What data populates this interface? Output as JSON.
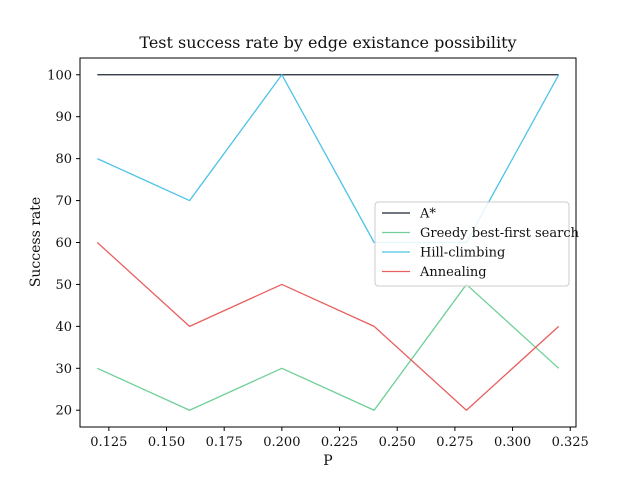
{
  "chart_data": {
    "type": "line",
    "title": "Test success rate by edge existance possibility",
    "xlabel": "P",
    "ylabel": "Success rate",
    "x": [
      0.12,
      0.16,
      0.2,
      0.24,
      0.28,
      0.32
    ],
    "xlim": [
      0.1125,
      0.3275
    ],
    "ylim": [
      16,
      104
    ],
    "xticks": [
      0.125,
      0.15,
      0.175,
      0.2,
      0.225,
      0.25,
      0.275,
      0.3,
      0.325
    ],
    "xtick_labels": [
      "0.125",
      "0.150",
      "0.175",
      "0.200",
      "0.225",
      "0.250",
      "0.275",
      "0.300",
      "0.325"
    ],
    "yticks": [
      20,
      30,
      40,
      50,
      60,
      70,
      80,
      90,
      100
    ],
    "ytick_labels": [
      "20",
      "30",
      "40",
      "50",
      "60",
      "70",
      "80",
      "90",
      "100"
    ],
    "grid": false,
    "legend_position": "center-right",
    "series": [
      {
        "name": "A*",
        "color": "#1b2631",
        "values": [
          100,
          100,
          100,
          100,
          100,
          100
        ]
      },
      {
        "name": "Greedy best-first search",
        "color": "#6fcf97",
        "values": [
          30,
          20,
          30,
          20,
          50,
          30
        ]
      },
      {
        "name": "Hill-climbing",
        "color": "#4fc3e8",
        "values": [
          80,
          70,
          100,
          60,
          60,
          100
        ]
      },
      {
        "name": "Annealing",
        "color": "#e8605f",
        "values": [
          60,
          40,
          50,
          40,
          20,
          40
        ]
      }
    ]
  }
}
